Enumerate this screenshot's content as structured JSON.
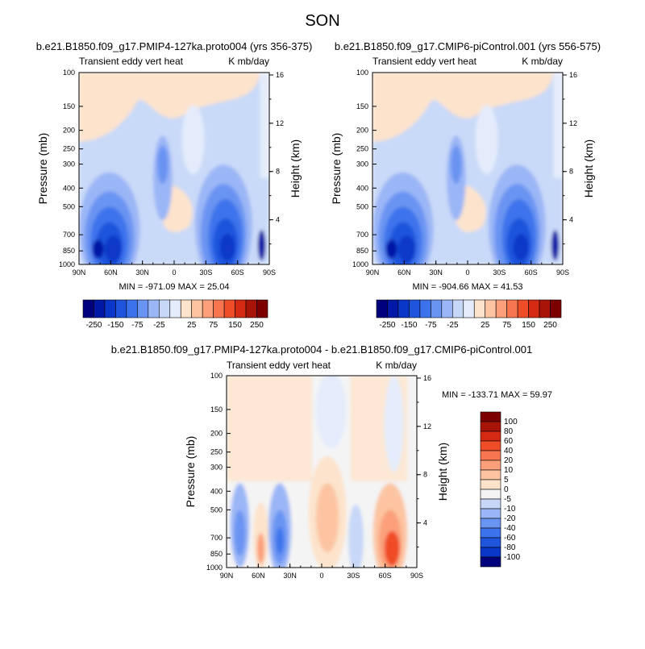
{
  "page_title": "SON",
  "colors": {
    "neg": [
      "#00007d",
      "#0018a6",
      "#0a37c8",
      "#1e55dc",
      "#3c73ec",
      "#6a94f2",
      "#9bb6f6",
      "#c7d7f8",
      "#e4ecfb"
    ],
    "zero": "#f4f4f4",
    "pos": [
      "#fde3cc",
      "#fcc4a1",
      "#fba07a",
      "#f77650",
      "#ef4c28",
      "#d42a14",
      "#a81408",
      "#7c0000"
    ]
  },
  "chart_data": [
    {
      "type": "contour",
      "title": "b.e21.B1850.f09_g17.PMIP4-127ka.proto004 (yrs 356-375)",
      "left_string": "Transient eddy vert heat",
      "right_string": "K mb/day",
      "xlabel": "",
      "ylabel": "Pressure (mb)",
      "y2label": "Height (km)",
      "x_ticks": [
        "90N",
        "60N",
        "30N",
        "0",
        "30S",
        "60S",
        "90S"
      ],
      "y_ticks": [
        100,
        150,
        200,
        250,
        300,
        400,
        500,
        700,
        850,
        1000
      ],
      "y2_ticks": [
        16,
        12,
        8,
        4
      ],
      "y_scale": "log",
      "stats": "MIN = -971.09  MAX =  25.04",
      "colorbar_labels": [
        "-250",
        "-150",
        "-75",
        "-25",
        "25",
        "75",
        "150",
        "250"
      ]
    },
    {
      "type": "contour",
      "title": "b.e21.B1850.f09_g17.CMIP6-piControl.001 (yrs 556-575)",
      "left_string": "Transient eddy vert heat",
      "right_string": "K mb/day",
      "xlabel": "",
      "ylabel": "Pressure (mb)",
      "y2label": "Height (km)",
      "x_ticks": [
        "90N",
        "60N",
        "30N",
        "0",
        "30S",
        "60S",
        "90S"
      ],
      "y_ticks": [
        100,
        150,
        200,
        250,
        300,
        400,
        500,
        700,
        850,
        1000
      ],
      "y2_ticks": [
        16,
        12,
        8,
        4
      ],
      "y_scale": "log",
      "stats": "MIN = -904.66  MAX =  41.53",
      "colorbar_labels": [
        "-250",
        "-150",
        "-75",
        "-25",
        "25",
        "75",
        "150",
        "250"
      ]
    },
    {
      "type": "contour",
      "title": "b.e21.B1850.f09_g17.PMIP4-127ka.proto004 - b.e21.B1850.f09_g17.CMIP6-piControl.001",
      "left_string": "Transient eddy vert heat",
      "right_string": "K mb/day",
      "xlabel": "",
      "ylabel": "Pressure (mb)",
      "y2label": "Height (km)",
      "x_ticks": [
        "90N",
        "60N",
        "30N",
        "0",
        "30S",
        "60S",
        "90S"
      ],
      "y_ticks": [
        100,
        150,
        200,
        250,
        300,
        400,
        500,
        700,
        850,
        1000
      ],
      "y2_ticks": [
        16,
        12,
        8,
        4
      ],
      "y_scale": "log",
      "stats": "MIN = -133.71  MAX =  59.97",
      "colorbar_labels": [
        "100",
        "80",
        "60",
        "40",
        "20",
        "10",
        "5",
        "0",
        "-5",
        "-10",
        "-20",
        "-40",
        "-60",
        "-80",
        "-100"
      ]
    }
  ]
}
